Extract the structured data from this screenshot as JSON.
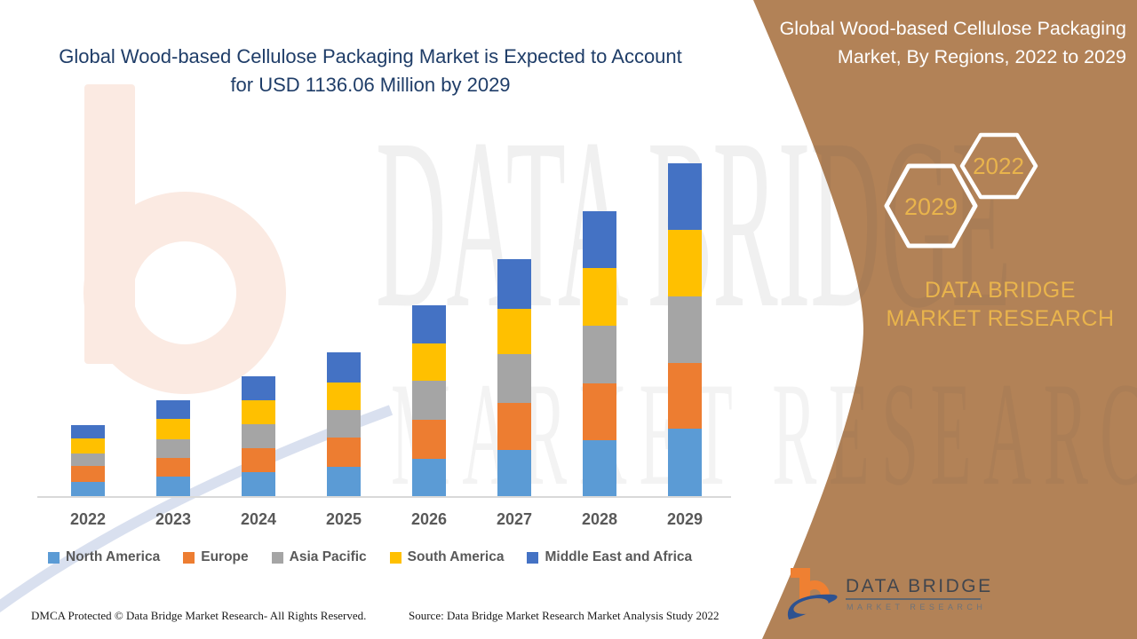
{
  "slide": {
    "left_title": "Global Wood-based Cellulose Packaging Market is Expected to Account for USD 1136.06 Million by 2029",
    "right_panel": {
      "title": "Global Wood-based Cellulose Packaging Market, By Regions, 2022 to 2029",
      "hexagons": [
        {
          "label": "2029"
        },
        {
          "label": "2022"
        }
      ],
      "brand_text": "DATA BRIDGE MARKET RESEARCH",
      "logo": {
        "title": "DATA BRIDGE",
        "subtitle": "MARKET RESEARCH"
      }
    },
    "watermark": {
      "line1": "DATA BRIDGE",
      "line2": "MARKET RESEARCH"
    },
    "footer": {
      "dmca": "DMCA Protected © Data Bridge Market Research- All Rights Reserved.",
      "source": "Source: Data Bridge Market Research Market Analysis Study 2022"
    }
  },
  "colors": {
    "panel_brown": "#b28257",
    "gold": "#e9b44c",
    "title_navy": "#1f3d68",
    "label_gray": "#595959",
    "axis_line": "#d9d9d9",
    "logo_orange": "#ef8032",
    "logo_blue": "#2d5291"
  },
  "chart_data": {
    "type": "bar",
    "stacked": true,
    "unit": "USD Million",
    "title": "Global Wood-based Cellulose Packaging Market is Expected to Account for USD 1136.06 Million by 2029",
    "xlabel": "",
    "ylabel": "",
    "ylim": [
      0,
      1200
    ],
    "grid": false,
    "legend_position": "bottom",
    "categories": [
      "2022",
      "2023",
      "2024",
      "2025",
      "2026",
      "2027",
      "2028",
      "2029"
    ],
    "totals": [
      242.3,
      327.1,
      409.0,
      490.8,
      651.3,
      808.9,
      972.5,
      1136.06
    ],
    "series": [
      {
        "name": "North America",
        "color": "#5b9bd5",
        "values": [
          48.5,
          66.6,
          81.8,
          100.0,
          127.2,
          157.5,
          190.9,
          230.2
        ]
      },
      {
        "name": "Europe",
        "color": "#ed7d31",
        "values": [
          54.5,
          63.6,
          81.8,
          100.0,
          133.3,
          160.6,
          193.9,
          224.2
        ]
      },
      {
        "name": "Asia Pacific",
        "color": "#a5a5a5",
        "values": [
          42.4,
          63.6,
          81.8,
          93.9,
          133.3,
          166.6,
          196.9,
          227.2
        ]
      },
      {
        "name": "South America",
        "color": "#ffc000",
        "values": [
          51.5,
          69.7,
          81.8,
          93.9,
          127.2,
          154.5,
          196.9,
          227.2
        ]
      },
      {
        "name": "Middle East and Africa",
        "color": "#4472c4",
        "values": [
          45.4,
          63.6,
          81.8,
          103.0,
          130.3,
          169.7,
          193.9,
          227.26
        ]
      }
    ]
  }
}
